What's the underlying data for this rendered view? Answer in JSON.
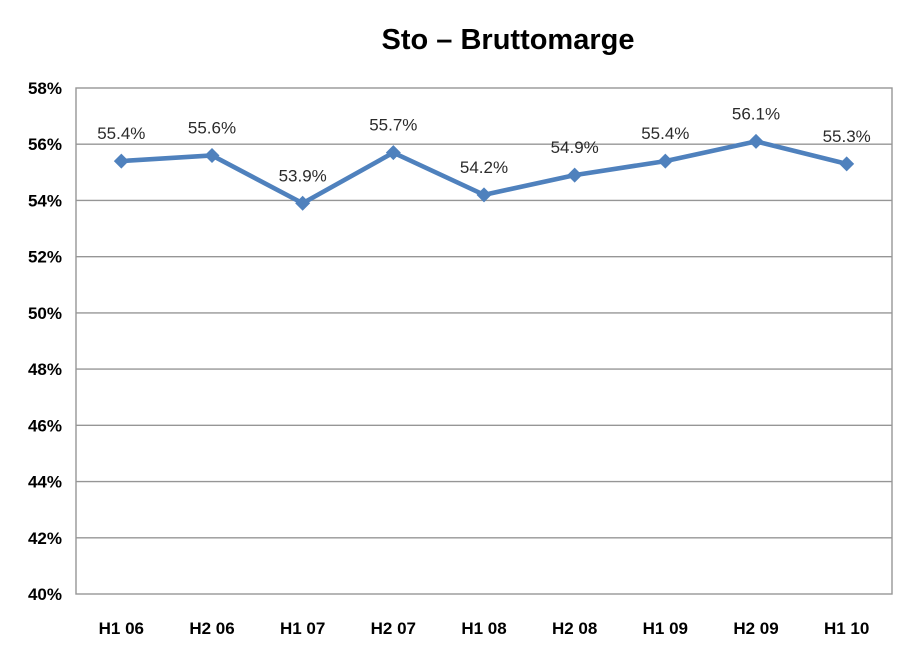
{
  "title": "Sto – Bruttomarge",
  "chart_data": {
    "type": "line",
    "title": "Sto – Bruttomarge",
    "categories": [
      "H1 06",
      "H2 06",
      "H1 07",
      "H2 07",
      "H1 08",
      "H2 08",
      "H1 09",
      "H2 09",
      "H1 10"
    ],
    "values": [
      55.4,
      55.6,
      53.9,
      55.7,
      54.2,
      54.9,
      55.4,
      56.1,
      55.3
    ],
    "data_labels": [
      "55.4%",
      "55.6%",
      "53.9%",
      "55.7%",
      "54.2%",
      "54.9%",
      "55.4%",
      "56.1%",
      "55.3%"
    ],
    "xlabel": "",
    "ylabel": "",
    "ylim": [
      40,
      58
    ],
    "ytick_step": 2,
    "ytick_labels": [
      "40%",
      "42%",
      "44%",
      "46%",
      "48%",
      "50%",
      "52%",
      "54%",
      "56%",
      "58%"
    ],
    "grid": true,
    "legend": "none",
    "marker": "diamond",
    "colors": {
      "line": "#4F81BD",
      "marker": "#4F81BD",
      "gridline": "#969696",
      "plot_border": "#969696",
      "text": "#000000",
      "background": "#ffffff"
    }
  }
}
